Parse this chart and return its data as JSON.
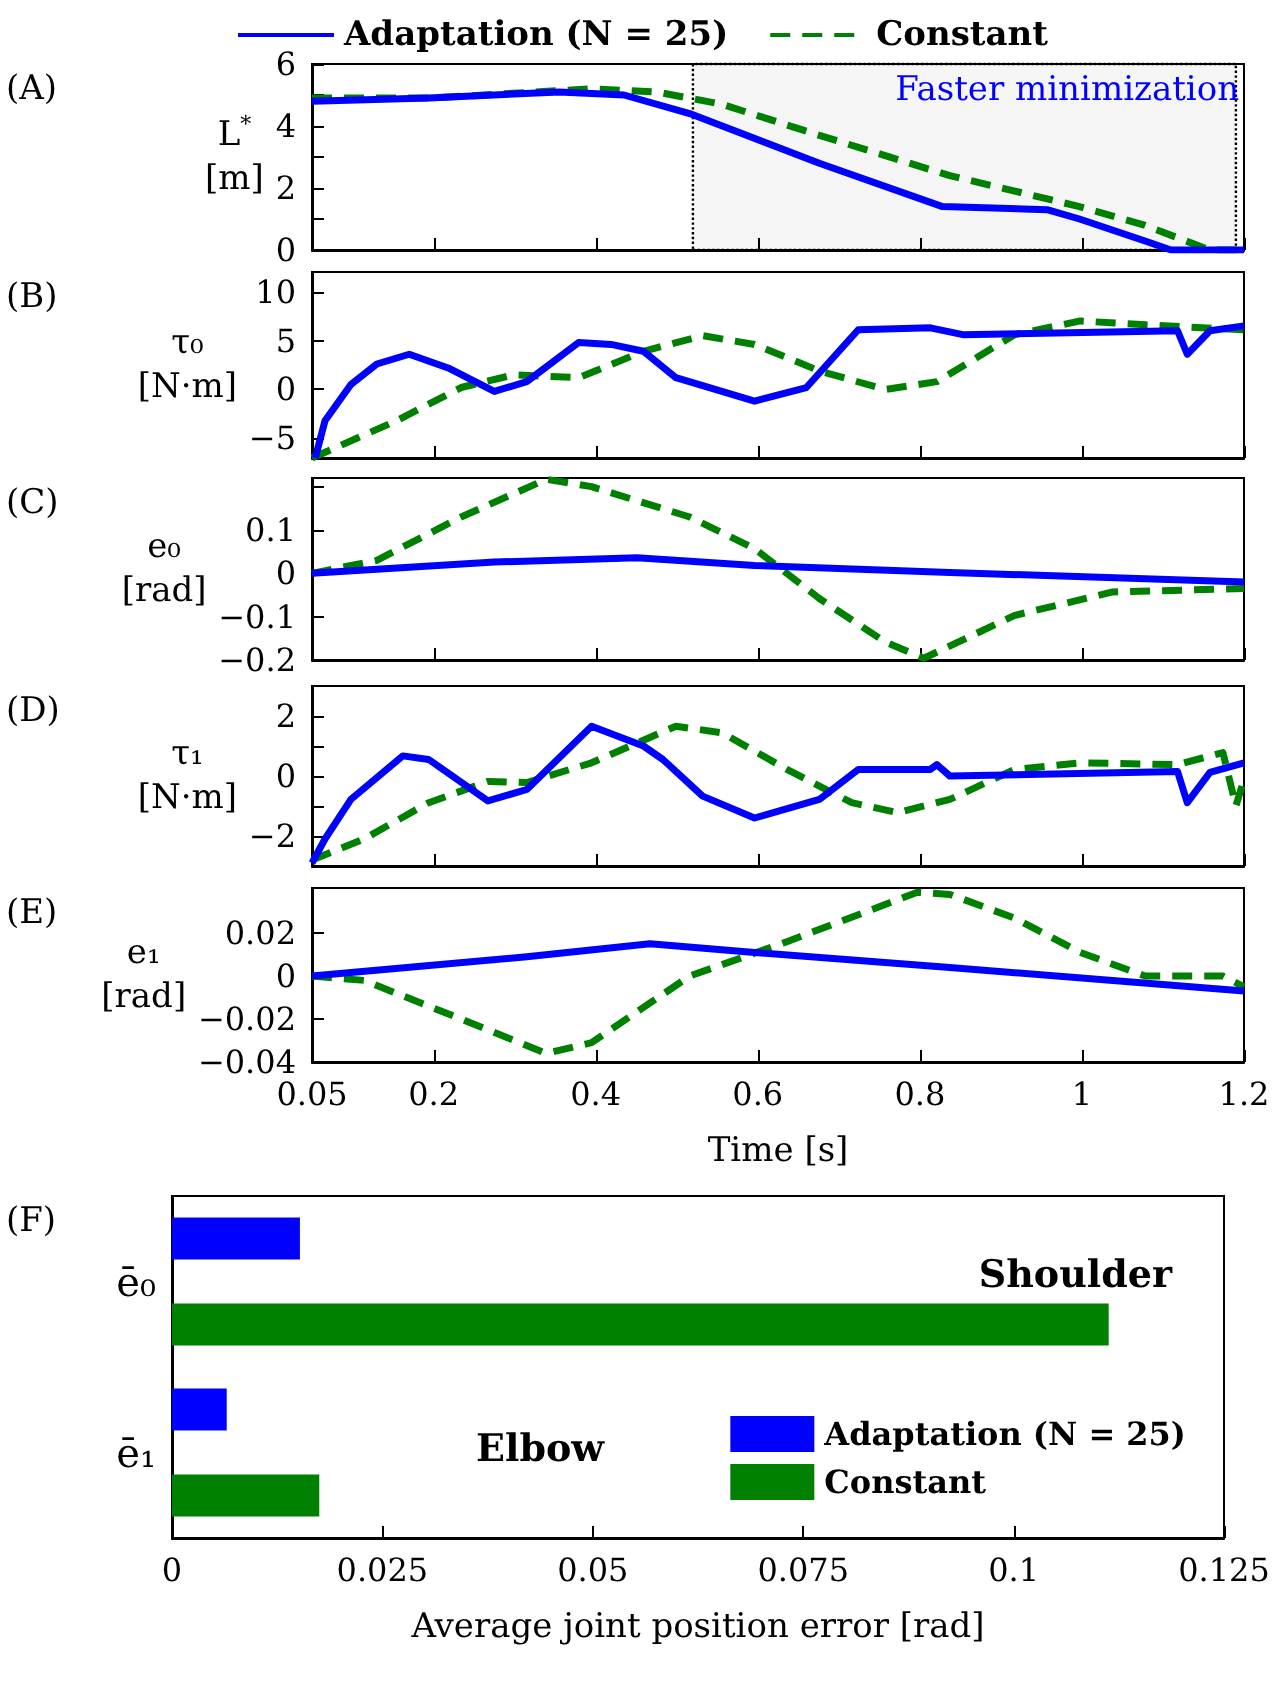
{
  "chart_data": [
    {
      "type": "line",
      "annotations": [
        "(A)"
      ],
      "ylabel": "L$^{*}$ [m]",
      "xlim": [
        0.05,
        1.2
      ],
      "xticks": [
        0.05,
        0.2,
        0.4,
        0.6,
        0.8,
        1,
        1.2
      ],
      "ylim": [
        0,
        6
      ],
      "yticks": [
        0,
        {
          "value": 1,
          "label": null
        },
        2,
        {
          "value": 3,
          "label": null
        },
        4,
        {
          "value": 5,
          "label": null
        },
        6
      ],
      "tick_labels": "y",
      "legend": "top",
      "grid": false,
      "bands": [
        {
          "axis": "x",
          "from": 0.52,
          "to": 1.19,
          "label": "Faster minimization",
          "color": "#000000"
        }
      ],
      "series": [
        {
          "name": "Adaptation (N = 25)",
          "color": "#0000ff",
          "line_style": "solid",
          "x": [
            0.05,
            0.194,
            0.355,
            0.435,
            0.516,
            0.676,
            0.828,
            0.957,
            0.997,
            1.077,
            1.11,
            1.2
          ],
          "values": [
            4.8,
            4.9,
            5.1,
            5.0,
            4.4,
            2.8,
            1.4,
            1.3,
            1.0,
            0.3,
            0,
            0
          ]
        },
        {
          "name": "Constant",
          "color": "#008000",
          "line_style": "dashed",
          "x": [
            0.05,
            0.194,
            0.395,
            0.475,
            0.556,
            0.676,
            0.837,
            0.997,
            1.077,
            1.158,
            1.2
          ],
          "values": [
            4.9,
            4.9,
            5.2,
            5.1,
            4.7,
            3.7,
            2.4,
            1.4,
            0.8,
            0,
            0
          ]
        }
      ]
    },
    {
      "type": "line",
      "annotations": [
        "(B)"
      ],
      "ylabel": "τ₀ [N·m]",
      "xlim": [
        0.05,
        1.2
      ],
      "xticks": [
        0.05,
        0.2,
        0.4,
        0.6,
        0.8,
        1,
        1.2
      ],
      "ylim": [
        -7,
        12
      ],
      "yticks": [
        -5,
        0,
        5,
        10
      ],
      "tick_labels": "y",
      "series": [
        {
          "color": "#0000ff",
          "line_style": "solid",
          "x": [
            0.054,
            0.066,
            0.098,
            0.13,
            0.17,
            0.218,
            0.275,
            0.315,
            0.379,
            0.419,
            0.459,
            0.499,
            0.596,
            0.66,
            0.724,
            0.813,
            0.853,
            1.118,
            1.13,
            1.158,
            1.2
          ],
          "values": [
            -7,
            -3.2,
            0.5,
            2.6,
            3.6,
            2.2,
            -0.2,
            0.8,
            4.8,
            4.6,
            3.9,
            1.2,
            -1.2,
            0.2,
            6.1,
            6.3,
            5.6,
            6.0,
            3.6,
            6.0,
            6.5
          ]
        },
        {
          "color": "#008000",
          "line_style": "dashed",
          "x": [
            0.05,
            0.154,
            0.234,
            0.299,
            0.379,
            0.459,
            0.532,
            0.596,
            0.676,
            0.757,
            0.821,
            0.917,
            0.998,
            1.078,
            1.2
          ],
          "values": [
            -7,
            -3.2,
            0.2,
            1.5,
            1.2,
            3.9,
            5.5,
            4.6,
            1.9,
            0,
            0.8,
            5.6,
            7.0,
            6.6,
            6.1
          ]
        }
      ]
    },
    {
      "type": "line",
      "annotations": [
        "(C)"
      ],
      "ylabel": "e₀ [rad]",
      "xlim": [
        0.05,
        1.2
      ],
      "xticks": [
        0.05,
        0.2,
        0.4,
        0.6,
        0.8,
        1,
        1.2
      ],
      "ylim": [
        -0.2,
        0.22
      ],
      "yticks": [
        -0.2,
        -0.1,
        0,
        0.1,
        {
          "value": 0.2,
          "label": null
        }
      ],
      "tick_labels": "y",
      "series": [
        {
          "color": "#0000ff",
          "line_style": "solid",
          "x": [
            0.05,
            0.275,
            0.451,
            0.596,
            0.837,
            1.2
          ],
          "values": [
            0,
            0.026,
            0.036,
            0.018,
            0.002,
            -0.02
          ]
        },
        {
          "color": "#008000",
          "line_style": "dashed",
          "x": [
            0.05,
            0.13,
            0.234,
            0.339,
            0.395,
            0.516,
            0.596,
            0.676,
            0.757,
            0.805,
            0.917,
            1.038,
            1.2
          ],
          "values": [
            0,
            0.03,
            0.13,
            0.217,
            0.2,
            0.13,
            0.057,
            -0.058,
            -0.158,
            -0.196,
            -0.097,
            -0.043,
            -0.035
          ]
        }
      ]
    },
    {
      "type": "line",
      "annotations": [
        "(D)"
      ],
      "ylabel": "τ₁ [N·m]",
      "xlim": [
        0.05,
        1.2
      ],
      "xticks": [
        0.05,
        0.2,
        0.4,
        0.6,
        0.8,
        1,
        1.2
      ],
      "ylim": [
        -3,
        3
      ],
      "yticks": [
        -2,
        {
          "value": -1,
          "label": null
        },
        0,
        {
          "value": 1,
          "label": null
        },
        2
      ],
      "tick_labels": "y",
      "series": [
        {
          "color": "#0000ff",
          "line_style": "solid",
          "x": [
            0.05,
            0.066,
            0.098,
            0.162,
            0.194,
            0.267,
            0.315,
            0.395,
            0.459,
            0.483,
            0.532,
            0.596,
            0.676,
            0.724,
            0.813,
            0.821,
            0.837,
            1.118,
            1.13,
            1.158,
            1.2
          ],
          "values": [
            -2.9,
            -2.1,
            -0.78,
            0.67,
            0.55,
            -0.83,
            -0.45,
            1.66,
            1.0,
            0.55,
            -0.67,
            -1.4,
            -0.78,
            0.22,
            0.22,
            0.38,
            0.0,
            0.15,
            -0.89,
            0.12,
            0.44
          ]
        },
        {
          "color": "#008000",
          "line_style": "dashed",
          "x": [
            0.05,
            0.114,
            0.194,
            0.267,
            0.315,
            0.395,
            0.499,
            0.556,
            0.636,
            0.716,
            0.773,
            0.837,
            0.917,
            0.998,
            1.118,
            1.174,
            1.19,
            1.2
          ],
          "values": [
            -2.8,
            -2.1,
            -0.89,
            -0.18,
            -0.22,
            0.44,
            1.66,
            1.44,
            0.22,
            -0.89,
            -1.22,
            -0.78,
            0.22,
            0.44,
            0.38,
            0.78,
            -1.0,
            -0.1
          ]
        }
      ]
    },
    {
      "type": "line",
      "annotations": [
        "(E)"
      ],
      "ylabel": "e₁ [rad]",
      "xlabel": "Time [s]",
      "xlim": [
        0.05,
        1.2
      ],
      "xticks": [
        0.05,
        0.2,
        0.4,
        0.6,
        0.8,
        1,
        1.2
      ],
      "ylim": [
        -0.04,
        0.041
      ],
      "yticks": [
        -0.04,
        -0.02,
        0,
        0.02
      ],
      "series": [
        {
          "color": "#0000ff",
          "line_style": "solid",
          "x": [
            0.05,
            0.315,
            0.467,
            0.596,
            0.837,
            1.2
          ],
          "values": [
            0,
            0.009,
            0.015,
            0.011,
            0.004,
            -0.007
          ]
        },
        {
          "color": "#008000",
          "line_style": "dashed",
          "x": [
            0.05,
            0.114,
            0.234,
            0.339,
            0.395,
            0.516,
            0.636,
            0.797,
            0.837,
            0.917,
            0.998,
            1.078,
            1.174,
            1.2
          ],
          "values": [
            0,
            -0.002,
            -0.02,
            -0.036,
            -0.031,
            0,
            0.016,
            0.039,
            0.038,
            0.027,
            0.011,
            0,
            0,
            -0.005
          ]
        }
      ]
    },
    {
      "type": "bar",
      "orientation": "horizontal",
      "xlabel": "Average joint position error [rad]",
      "categories": [
        "ē₀",
        "ē₁"
      ],
      "xlim": [
        0,
        0.125
      ],
      "xticks": [
        0,
        0.025,
        0.05,
        0.075,
        0.1,
        0.125
      ],
      "legend": "bottom right",
      "annotations": [
        "(F)",
        "Shoulder",
        "Elbow"
      ],
      "series": [
        {
          "name": "Adaptation (N = 25)",
          "color": "#0000ff",
          "values": [
            0.0152,
            0.0065
          ]
        },
        {
          "name": "Constant",
          "color": "#008000",
          "values": [
            0.1113,
            0.0175
          ]
        }
      ]
    }
  ]
}
